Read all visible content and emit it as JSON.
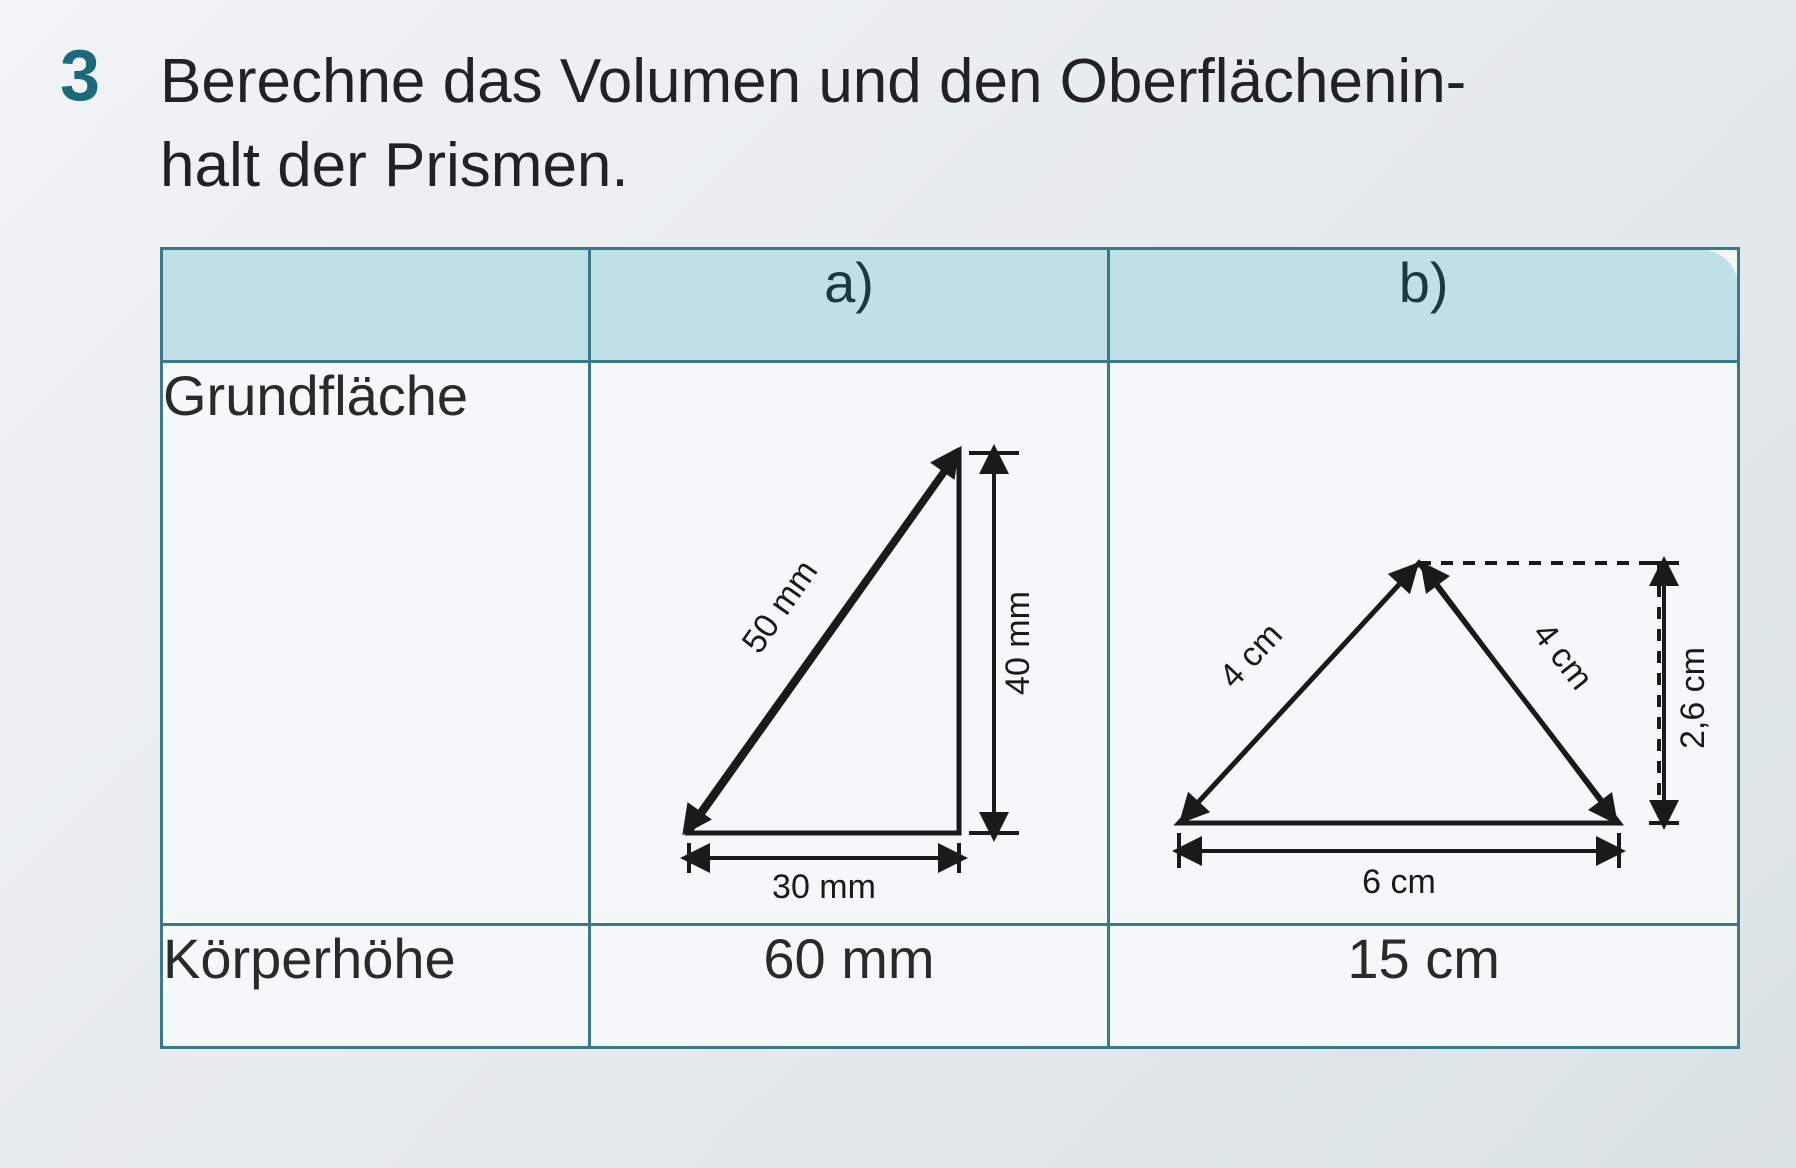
{
  "question": {
    "number": "3",
    "text": "Berechne das Volumen und den Oberflächenin-\nhalt der Prismen."
  },
  "table": {
    "header_blank": "",
    "col_a": "a)",
    "col_b": "b)",
    "row_base": "Grundfläche",
    "row_height": "Körperhöhe",
    "height_a": "60 mm",
    "height_b": "15 cm"
  },
  "figure_a": {
    "type": "right-triangle",
    "hypotenuse_label": "50 mm",
    "base_label": "30 mm",
    "height_label": "40 mm",
    "stroke": "#1a1a1a",
    "stroke_width": 4,
    "label_fontsize": 34
  },
  "figure_b": {
    "type": "isoceles-triangle-with-height",
    "left_side_label": "4 cm",
    "right_side_label": "4 cm",
    "base_label": "6 cm",
    "height_label": "2,6 cm",
    "stroke": "#1a1a1a",
    "stroke_width": 4,
    "label_fontsize": 34
  },
  "colors": {
    "accent": "#1a6a7a",
    "header_bg": "#bfe0e6",
    "border": "#3a7a88",
    "text": "#2a2a2a",
    "page_bg": "#e8edf0"
  }
}
